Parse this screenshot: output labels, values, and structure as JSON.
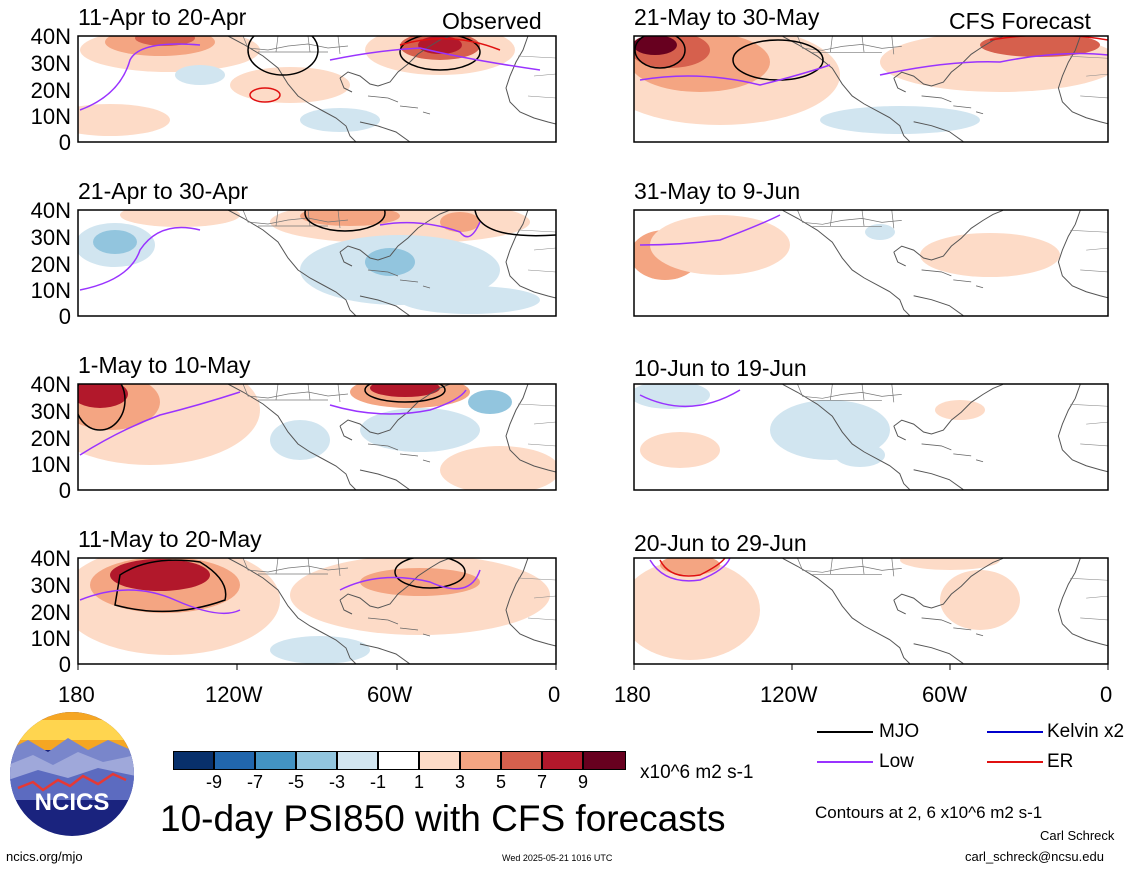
{
  "panels": [
    {
      "id": "obs1",
      "period": "11-Apr to 20-Apr",
      "group": "Observed",
      "col": 0,
      "row": 0
    },
    {
      "id": "obs2",
      "period": "21-Apr to 30-Apr",
      "group": "",
      "col": 0,
      "row": 1
    },
    {
      "id": "obs3",
      "period": "1-May to 10-May",
      "group": "",
      "col": 0,
      "row": 2
    },
    {
      "id": "obs4",
      "period": "11-May to 20-May",
      "group": "",
      "col": 0,
      "row": 3
    },
    {
      "id": "fc1",
      "period": "21-May to 30-May",
      "group": "CFS Forecast",
      "col": 1,
      "row": 0
    },
    {
      "id": "fc2",
      "period": "31-May to 9-Jun",
      "group": "",
      "col": 1,
      "row": 1
    },
    {
      "id": "fc3",
      "period": "10-Jun to 19-Jun",
      "group": "",
      "col": 1,
      "row": 2
    },
    {
      "id": "fc4",
      "period": "20-Jun to 29-Jun",
      "group": "",
      "col": 1,
      "row": 3
    }
  ],
  "lat_labels": [
    "40N",
    "30N",
    "20N",
    "10N",
    "0"
  ],
  "lon_labels": [
    "180",
    "120W",
    "60W",
    "0"
  ],
  "colorbar": {
    "ticks": [
      "-9",
      "-7",
      "-5",
      "-3",
      "-1",
      "1",
      "3",
      "5",
      "7",
      "9"
    ],
    "colors": [
      "#08306b",
      "#2166ac",
      "#4393c3",
      "#92c5de",
      "#d1e5f0",
      "#ffffff",
      "#fddbc7",
      "#f4a582",
      "#d6604d",
      "#b2182b",
      "#67001f"
    ],
    "units": "x10^6 m2 s-1"
  },
  "legend": [
    {
      "label": "MJO",
      "color": "#000000"
    },
    {
      "label": "Kelvin x2",
      "color": "#0000cc"
    },
    {
      "label": "Low",
      "color": "#9933ff"
    },
    {
      "label": "ER",
      "color": "#e01010"
    }
  ],
  "title": "10-day PSI850 with CFS forecasts",
  "contours_note": "Contours at 2, 6 x10^6 m2 s-1",
  "author": "Carl Schreck",
  "email": "carl_schreck@ncsu.edu",
  "site": "ncics.org/mjo",
  "timestamp": "Wed 2025-05-21 1016 UTC",
  "logo_text": "NCICS"
}
